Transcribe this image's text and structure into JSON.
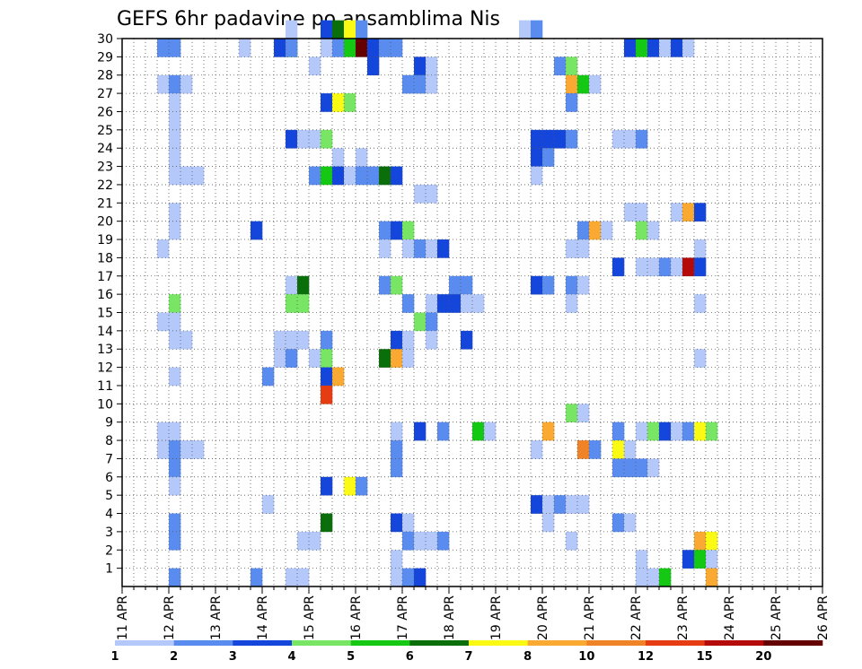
{
  "chart_data": {
    "type": "heatmap",
    "title": "GEFS 6hr padavine po ansamblima Nis",
    "xlabel": "",
    "ylabel": "",
    "x_ticks": [
      "11 APR",
      "12 APR",
      "13 APR",
      "14 APR",
      "15 APR",
      "16 APR",
      "17 APR",
      "18 APR",
      "19 APR",
      "20 APR",
      "21 APR",
      "22 APR",
      "23 APR",
      "24 APR",
      "25 APR",
      "26 APR"
    ],
    "x_steps_per_day": 4,
    "y_members": [
      0,
      1,
      2,
      3,
      4,
      5,
      6,
      7,
      8,
      9,
      10,
      11,
      12,
      13,
      14,
      15,
      16,
      17,
      18,
      19,
      20,
      21,
      22,
      23,
      24,
      25,
      26,
      27,
      28,
      29,
      30
    ],
    "y_tick_labels": [
      "1",
      "2",
      "3",
      "4",
      "5",
      "6",
      "7",
      "8",
      "9",
      "10",
      "11",
      "12",
      "13",
      "14",
      "15",
      "16",
      "17",
      "18",
      "19",
      "20",
      "21",
      "22",
      "23",
      "24",
      "25",
      "26",
      "27",
      "28",
      "29",
      "30"
    ],
    "grid": "dotted",
    "legend": {
      "position": "bottom",
      "labels": [
        "1",
        "2",
        "3",
        "4",
        "5",
        "6",
        "7",
        "8",
        "10",
        "12",
        "15",
        "20"
      ],
      "colors": [
        "#b4c8fa",
        "#5a8cf0",
        "#1446dc",
        "#78e664",
        "#14c814",
        "#0a6e0a",
        "#fafa14",
        "#faaa32",
        "#f08228",
        "#e63c14",
        "#b40a0a",
        "#640000"
      ]
    },
    "cells": [
      [
        30,
        14,
        0
      ],
      [
        30,
        17,
        2
      ],
      [
        30,
        18,
        5
      ],
      [
        30,
        19,
        6
      ],
      [
        30,
        20,
        1
      ],
      [
        30,
        34,
        0
      ],
      [
        30,
        35,
        1
      ],
      [
        29,
        3,
        1
      ],
      [
        29,
        4,
        1
      ],
      [
        29,
        10,
        0
      ],
      [
        29,
        13,
        2
      ],
      [
        29,
        14,
        4
      ],
      [
        29,
        14,
        1
      ],
      [
        29,
        17,
        0
      ],
      [
        29,
        18,
        1
      ],
      [
        29,
        19,
        4
      ],
      [
        29,
        20,
        11
      ],
      [
        29,
        21,
        2
      ],
      [
        29,
        22,
        1
      ],
      [
        29,
        23,
        1
      ],
      [
        29,
        43,
        2
      ],
      [
        29,
        44,
        4
      ],
      [
        29,
        45,
        2
      ],
      [
        29,
        46,
        0
      ],
      [
        29,
        47,
        2
      ],
      [
        29,
        48,
        0
      ],
      [
        28,
        16,
        0
      ],
      [
        28,
        21,
        2
      ],
      [
        28,
        25,
        2
      ],
      [
        28,
        26,
        0
      ],
      [
        28,
        37,
        1
      ],
      [
        28,
        38,
        3
      ],
      [
        27,
        3,
        0
      ],
      [
        27,
        4,
        1
      ],
      [
        27,
        5,
        0
      ],
      [
        27,
        24,
        1
      ],
      [
        27,
        25,
        1
      ],
      [
        27,
        26,
        0
      ],
      [
        27,
        38,
        7
      ],
      [
        27,
        39,
        4
      ],
      [
        27,
        40,
        0
      ],
      [
        26,
        4,
        0
      ],
      [
        26,
        17,
        2
      ],
      [
        26,
        18,
        6
      ],
      [
        26,
        19,
        3
      ],
      [
        26,
        38,
        1
      ],
      [
        25,
        4,
        0
      ],
      [
        24,
        4,
        0
      ],
      [
        24,
        14,
        2
      ],
      [
        24,
        15,
        0
      ],
      [
        24,
        16,
        0
      ],
      [
        24,
        17,
        3
      ],
      [
        24,
        35,
        2
      ],
      [
        24,
        36,
        2
      ],
      [
        24,
        37,
        2
      ],
      [
        24,
        38,
        1
      ],
      [
        24,
        42,
        0
      ],
      [
        24,
        43,
        0
      ],
      [
        24,
        44,
        1
      ],
      [
        23,
        4,
        0
      ],
      [
        23,
        18,
        0
      ],
      [
        23,
        20,
        0
      ],
      [
        23,
        35,
        2
      ],
      [
        23,
        36,
        1
      ],
      [
        22,
        4,
        0
      ],
      [
        22,
        5,
        0
      ],
      [
        22,
        6,
        0
      ],
      [
        22,
        16,
        1
      ],
      [
        22,
        17,
        4
      ],
      [
        22,
        18,
        2
      ],
      [
        22,
        19,
        0
      ],
      [
        22,
        20,
        1
      ],
      [
        22,
        21,
        1
      ],
      [
        22,
        22,
        5
      ],
      [
        22,
        23,
        2
      ],
      [
        22,
        35,
        0
      ],
      [
        21,
        25,
        0
      ],
      [
        21,
        26,
        0
      ],
      [
        20,
        4,
        0
      ],
      [
        20,
        43,
        0
      ],
      [
        20,
        44,
        0
      ],
      [
        20,
        47,
        0
      ],
      [
        20,
        48,
        7
      ],
      [
        20,
        49,
        2
      ],
      [
        19,
        4,
        0
      ],
      [
        19,
        11,
        2
      ],
      [
        19,
        22,
        1
      ],
      [
        19,
        23,
        2
      ],
      [
        19,
        24,
        3
      ],
      [
        19,
        39,
        1
      ],
      [
        19,
        40,
        7
      ],
      [
        19,
        41,
        0
      ],
      [
        19,
        44,
        3
      ],
      [
        19,
        45,
        0
      ],
      [
        18,
        3,
        0
      ],
      [
        18,
        22,
        0
      ],
      [
        18,
        24,
        0
      ],
      [
        18,
        25,
        1
      ],
      [
        18,
        26,
        0
      ],
      [
        18,
        27,
        2
      ],
      [
        18,
        38,
        0
      ],
      [
        18,
        39,
        0
      ],
      [
        18,
        49,
        0
      ],
      [
        17,
        42,
        2
      ],
      [
        17,
        44,
        0
      ],
      [
        17,
        45,
        0
      ],
      [
        17,
        46,
        1
      ],
      [
        17,
        47,
        0
      ],
      [
        17,
        48,
        10
      ],
      [
        17,
        49,
        2
      ],
      [
        16,
        14,
        0
      ],
      [
        16,
        15,
        5
      ],
      [
        16,
        22,
        1
      ],
      [
        16,
        23,
        3
      ],
      [
        16,
        28,
        1
      ],
      [
        16,
        29,
        1
      ],
      [
        16,
        35,
        2
      ],
      [
        16,
        36,
        1
      ],
      [
        16,
        38,
        1
      ],
      [
        16,
        39,
        0
      ],
      [
        15,
        4,
        3
      ],
      [
        15,
        14,
        3
      ],
      [
        15,
        15,
        3
      ],
      [
        15,
        24,
        1
      ],
      [
        15,
        26,
        0
      ],
      [
        15,
        27,
        2
      ],
      [
        15,
        28,
        2
      ],
      [
        15,
        29,
        0
      ],
      [
        15,
        30,
        0
      ],
      [
        15,
        38,
        0
      ],
      [
        15,
        49,
        0
      ],
      [
        14,
        3,
        0
      ],
      [
        14,
        4,
        0
      ],
      [
        14,
        25,
        3
      ],
      [
        14,
        26,
        1
      ],
      [
        13,
        4,
        0
      ],
      [
        13,
        5,
        0
      ],
      [
        13,
        14,
        0
      ],
      [
        13,
        15,
        0
      ],
      [
        13,
        17,
        1
      ],
      [
        13,
        23,
        2
      ],
      [
        13,
        24,
        0
      ],
      [
        13,
        26,
        0
      ],
      [
        13,
        29,
        2
      ],
      [
        12,
        13,
        0
      ],
      [
        13,
        13,
        0
      ],
      [
        12,
        14,
        1
      ],
      [
        12,
        16,
        0
      ],
      [
        12,
        17,
        3
      ],
      [
        12,
        22,
        5
      ],
      [
        12,
        23,
        7
      ],
      [
        12,
        24,
        0
      ],
      [
        12,
        49,
        0
      ],
      [
        11,
        4,
        0
      ],
      [
        11,
        12,
        1
      ],
      [
        11,
        17,
        2
      ],
      [
        11,
        18,
        7
      ],
      [
        10,
        17,
        9
      ],
      [
        9,
        38,
        3
      ],
      [
        9,
        39,
        0
      ],
      [
        8,
        3,
        0
      ],
      [
        8,
        4,
        0
      ],
      [
        8,
        23,
        0
      ],
      [
        8,
        25,
        2
      ],
      [
        8,
        27,
        1
      ],
      [
        8,
        30,
        4
      ],
      [
        8,
        31,
        0
      ],
      [
        8,
        36,
        7
      ],
      [
        8,
        42,
        1
      ],
      [
        8,
        44,
        0
      ],
      [
        8,
        45,
        3
      ],
      [
        8,
        46,
        2
      ],
      [
        8,
        47,
        0
      ],
      [
        8,
        48,
        1
      ],
      [
        8,
        49,
        6
      ],
      [
        8,
        50,
        3
      ],
      [
        7,
        3,
        0
      ],
      [
        7,
        4,
        1
      ],
      [
        7,
        5,
        0
      ],
      [
        7,
        6,
        0
      ],
      [
        7,
        23,
        1
      ],
      [
        7,
        35,
        0
      ],
      [
        7,
        39,
        8
      ],
      [
        7,
        40,
        1
      ],
      [
        7,
        42,
        6
      ],
      [
        7,
        43,
        0
      ],
      [
        6,
        4,
        1
      ],
      [
        6,
        23,
        1
      ],
      [
        6,
        42,
        1
      ],
      [
        6,
        43,
        1
      ],
      [
        6,
        44,
        1
      ],
      [
        6,
        45,
        0
      ],
      [
        5,
        4,
        0
      ],
      [
        5,
        17,
        2
      ],
      [
        5,
        19,
        6
      ],
      [
        5,
        20,
        1
      ],
      [
        4,
        12,
        0
      ],
      [
        4,
        35,
        2
      ],
      [
        4,
        36,
        0
      ],
      [
        4,
        37,
        1
      ],
      [
        4,
        38,
        0
      ],
      [
        4,
        39,
        0
      ],
      [
        3,
        4,
        1
      ],
      [
        3,
        17,
        5
      ],
      [
        3,
        23,
        2
      ],
      [
        3,
        24,
        0
      ],
      [
        3,
        36,
        0
      ],
      [
        3,
        42,
        1
      ],
      [
        3,
        43,
        0
      ],
      [
        2,
        4,
        1
      ],
      [
        2,
        15,
        0
      ],
      [
        2,
        16,
        0
      ],
      [
        2,
        24,
        1
      ],
      [
        2,
        25,
        0
      ],
      [
        2,
        26,
        0
      ],
      [
        2,
        27,
        1
      ],
      [
        2,
        38,
        0
      ],
      [
        2,
        49,
        7
      ],
      [
        2,
        50,
        6
      ],
      [
        1,
        23,
        0
      ],
      [
        1,
        44,
        0
      ],
      [
        1,
        48,
        2
      ],
      [
        1,
        49,
        4
      ],
      [
        1,
        50,
        0
      ],
      [
        0,
        4,
        1
      ],
      [
        0,
        11,
        1
      ],
      [
        0,
        14,
        0
      ],
      [
        0,
        15,
        0
      ],
      [
        0,
        23,
        0
      ],
      [
        0,
        24,
        1
      ],
      [
        0,
        25,
        2
      ],
      [
        0,
        44,
        0
      ],
      [
        0,
        45,
        0
      ],
      [
        0,
        46,
        4
      ],
      [
        0,
        50,
        7
      ]
    ]
  }
}
